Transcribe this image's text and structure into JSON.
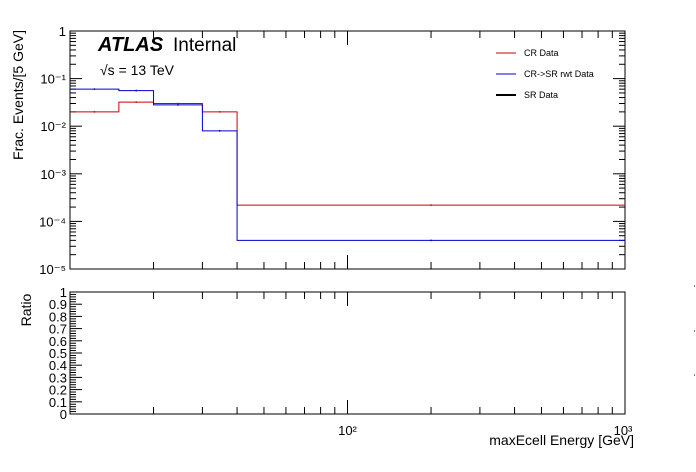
{
  "chart_data": [
    {
      "type": "line",
      "subtype": "step-histogram",
      "ylabel": "Frac. Events/[5 GeV]",
      "yscale": "log",
      "xscale": "log",
      "ylim": [
        1e-05,
        1
      ],
      "xlim": [
        10,
        1000
      ],
      "y_tick_labels": [
        "10⁻⁵",
        "10⁻⁴",
        "10⁻³",
        "10⁻²",
        "10⁻¹",
        "1"
      ],
      "annotations": {
        "atlas": "ATLAS",
        "internal": "Internal",
        "energy": "√s = 13 TeV"
      },
      "legend_position": "top-right",
      "bin_edges": [
        10,
        15,
        20,
        30,
        40,
        1000
      ],
      "series": [
        {
          "name": "CR Data",
          "color": "#cc0000",
          "values": [
            0.02,
            0.032,
            0.03,
            0.02,
            0.00022
          ]
        },
        {
          "name": "CR->SR rwt Data",
          "color": "#0000cc",
          "values": [
            0.06,
            0.056,
            0.028,
            0.008,
            4e-05
          ]
        },
        {
          "name": "SR Data",
          "color": "#000000",
          "values": []
        }
      ]
    },
    {
      "type": "line",
      "ylabel": "Ratio",
      "xlabel": "maxEcell Energy [GeV]",
      "xscale": "log",
      "ylim": [
        0,
        1
      ],
      "xlim": [
        10,
        1000
      ],
      "y_tick_labels": [
        "0",
        "0.1",
        "0.2",
        "0.3",
        "0.4",
        "0.5",
        "0.6",
        "0.7",
        "0.8",
        "0.9",
        "1"
      ],
      "x_tick_labels": [
        "10²",
        "10³"
      ],
      "series": []
    }
  ]
}
